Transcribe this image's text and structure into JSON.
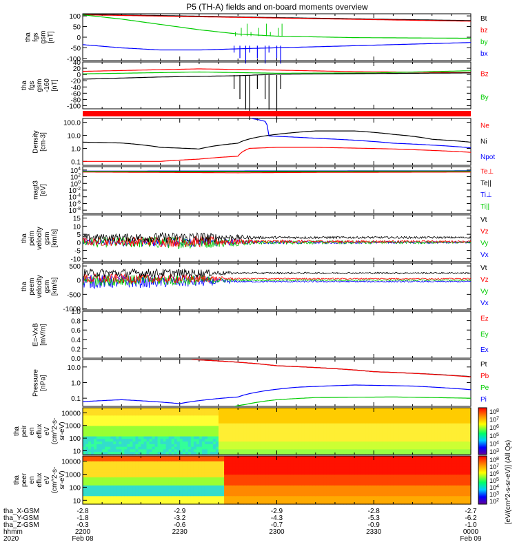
{
  "title": "P5 (TH-A) fields and on-board moments overview",
  "colors": {
    "black": "#000000",
    "red": "#ff0000",
    "green": "#00cc00",
    "blue": "#0000ff"
  },
  "chart_data": {
    "type": "line",
    "time_axis": {
      "ticks": [
        "2200",
        "2230",
        "2300",
        "2330",
        "0000"
      ],
      "dates": [
        "Feb 08",
        "",
        "",
        "",
        "Feb 09"
      ],
      "year": "2020",
      "rows": [
        {
          "label": "tha_X-GSM",
          "values": [
            "-2.8",
            "-2.9",
            "-2.9",
            "-2.8",
            "-2.7"
          ]
        },
        {
          "label": "tha_Y-GSM",
          "values": [
            "-1.8",
            "-3.2",
            "-4.3",
            "-5.3",
            "-6.2"
          ]
        },
        {
          "label": "tha_Z-GSM",
          "values": [
            "-0.3",
            "-0.6",
            "-0.7",
            "-0.9",
            "-1.0"
          ]
        },
        {
          "label": "hhmm",
          "values": [
            "2200",
            "2230",
            "2300",
            "2330",
            "0000"
          ]
        }
      ]
    },
    "panels": [
      {
        "id": "fgs",
        "ylabel": [
          "tha",
          "fgs",
          "gsm",
          "[nT]"
        ],
        "yticks": [
          "100",
          "50",
          "0",
          "-50",
          "-100"
        ],
        "ylim": [
          -110,
          110
        ],
        "legend": [
          "Bt",
          "bz",
          "by",
          "bx"
        ],
        "series": [
          {
            "name": "Bt",
            "color": "#000000",
            "points": [
              [
                0,
                108
              ],
              [
                0.5,
                92
              ],
              [
                1,
                78
              ]
            ]
          },
          {
            "name": "bz",
            "color": "#ff0000",
            "points": [
              [
                0,
                105
              ],
              [
                0.5,
                90
              ],
              [
                1,
                75
              ]
            ]
          },
          {
            "name": "by",
            "color": "#00cc00",
            "points": [
              [
                0,
                105
              ],
              [
                0.1,
                85
              ],
              [
                0.2,
                60
              ],
              [
                0.3,
                35
              ],
              [
                0.4,
                15
              ],
              [
                0.5,
                5
              ],
              [
                0.7,
                -2
              ],
              [
                1,
                -5
              ]
            ]
          },
          {
            "name": "bx",
            "color": "#0000ff",
            "points": [
              [
                0,
                -35
              ],
              [
                0.1,
                -50
              ],
              [
                0.2,
                -60
              ],
              [
                0.3,
                -60
              ],
              [
                0.45,
                -52
              ],
              [
                0.6,
                -45
              ],
              [
                0.8,
                -35
              ],
              [
                1,
                -25
              ]
            ]
          }
        ]
      },
      {
        "id": "fgs_dsl",
        "ylabel": [
          "tha",
          "fgs",
          "gsm",
          "-160",
          "[nT]"
        ],
        "yticks": [
          "40",
          "20",
          "0",
          "-20",
          "-40",
          "-60",
          "-80",
          "-100"
        ],
        "ylim": [
          -110,
          40
        ],
        "legend": [
          "Bz",
          "By"
        ],
        "series": [
          {
            "name": "Bz",
            "color": "#ff0000",
            "points": [
              [
                0,
                10
              ],
              [
                0.3,
                18
              ],
              [
                0.5,
                14
              ],
              [
                0.7,
                9
              ],
              [
                1,
                6
              ]
            ]
          },
          {
            "name": "By",
            "color": "#00cc00",
            "points": [
              [
                0,
                2
              ],
              [
                0.3,
                8
              ],
              [
                0.5,
                4
              ],
              [
                0.75,
                5
              ],
              [
                1,
                12
              ]
            ]
          },
          {
            "name": "Bx",
            "color": "#000000",
            "points": [
              [
                0,
                -15
              ],
              [
                0.2,
                -8
              ],
              [
                0.4,
                -4
              ],
              [
                0.5,
                1
              ],
              [
                0.75,
                3
              ],
              [
                1,
                5
              ]
            ]
          }
        ]
      },
      {
        "id": "density",
        "ylabel": [
          "Density",
          "[cm-3]"
        ],
        "yticks": [
          "100.0",
          "10.0",
          "1.0",
          "0.1"
        ],
        "ylim": [
          0.05,
          200
        ],
        "log": true,
        "legend": [
          "Ne",
          "Ni",
          "Npot"
        ],
        "series": [
          {
            "name": "Ni",
            "color": "#000000",
            "points": [
              [
                0,
                3
              ],
              [
                0.1,
                2.6
              ],
              [
                0.2,
                1.2
              ],
              [
                0.3,
                0.9
              ],
              [
                0.4,
                2.5
              ],
              [
                0.5,
                12
              ],
              [
                0.6,
                22
              ],
              [
                0.7,
                22
              ],
              [
                0.8,
                12
              ],
              [
                0.9,
                5
              ],
              [
                1,
                3
              ]
            ]
          },
          {
            "name": "Ne",
            "color": "#ff0000",
            "points": [
              [
                0,
                0.1
              ],
              [
                0.2,
                0.1
              ],
              [
                0.3,
                0.15
              ],
              [
                0.4,
                0.25
              ],
              [
                0.43,
                1
              ],
              [
                0.5,
                1.2
              ],
              [
                0.6,
                1.2
              ],
              [
                0.8,
                0.9
              ],
              [
                1,
                0.5
              ]
            ]
          },
          {
            "name": "Npot",
            "color": "#0000ff",
            "points": [
              [
                0.435,
                200
              ],
              [
                0.47,
                120
              ],
              [
                0.48,
                9
              ],
              [
                0.6,
                6
              ],
              [
                0.8,
                2.5
              ],
              [
                1,
                1.1
              ]
            ]
          }
        ]
      },
      {
        "id": "magt3",
        "ylabel": [
          "magt3",
          "[eV]"
        ],
        "yticks": [
          "10^4",
          "10^2",
          "10^0",
          "10^-2",
          "10^-4",
          "10^-6",
          "10^-8"
        ],
        "ylim": [
          1e-09,
          100000.0
        ],
        "log": true,
        "legend": [
          "Te⊥",
          "Te||",
          "Ti⊥",
          "Ti||"
        ],
        "series": [
          {
            "name": "Te||",
            "color": "#000000",
            "points": [
              [
                0,
                3000
              ],
              [
                1,
                3000
              ]
            ]
          },
          {
            "name": "Te⊥",
            "color": "#ff0000",
            "points": [
              [
                0,
                2500
              ],
              [
                0.4,
                1500
              ],
              [
                0.6,
                2000
              ],
              [
                1,
                2500
              ]
            ]
          },
          {
            "name": "Ti⊥",
            "color": "#0000ff",
            "points": [
              [
                0,
                5000
              ],
              [
                1,
                6000
              ]
            ]
          },
          {
            "name": "Ti||",
            "color": "#00cc00",
            "points": [
              [
                0,
                4000
              ],
              [
                1,
                5000
              ]
            ]
          }
        ]
      },
      {
        "id": "peim",
        "ylabel": [
          "tha",
          "peim",
          "velocity",
          "gsm",
          "[km/s]"
        ],
        "yticks": [
          "15",
          "10",
          "5",
          "0",
          "-5",
          "-10"
        ],
        "ylim": [
          -12,
          17
        ],
        "legend": [
          "Vt",
          "Vz",
          "Vy",
          "Vx"
        ],
        "noise": [
          {
            "name": "Vx",
            "color": "#0000ff",
            "amp": [
              [
                0,
                2
              ],
              [
                0.3,
                3
              ],
              [
                0.45,
                1
              ],
              [
                1,
                0.6
              ]
            ],
            "base": 0
          },
          {
            "name": "Vy",
            "color": "#00cc00",
            "amp": [
              [
                0,
                3
              ],
              [
                0.3,
                4
              ],
              [
                0.45,
                1.2
              ],
              [
                1,
                0.7
              ]
            ],
            "base": 0
          },
          {
            "name": "Vz",
            "color": "#ff0000",
            "amp": [
              [
                0,
                2.5
              ],
              [
                0.3,
                3.5
              ],
              [
                0.45,
                1
              ],
              [
                1,
                0.6
              ]
            ],
            "base": 0.5
          },
          {
            "name": "Vt",
            "color": "#000000",
            "amp": [
              [
                0,
                2
              ],
              [
                0.3,
                3.5
              ],
              [
                0.45,
                0.8
              ],
              [
                1,
                0.6
              ]
            ],
            "base": 3
          }
        ]
      },
      {
        "id": "peem",
        "ylabel": [
          "tha",
          "peem",
          "velocity",
          "gsm",
          "[km/s]"
        ],
        "yticks": [
          "500",
          "0",
          "-500",
          "-1000"
        ],
        "ylim": [
          -1050,
          600
        ],
        "legend": [
          "Vt",
          "Vz",
          "Vy",
          "Vx"
        ],
        "noise": [
          {
            "name": "Vx",
            "color": "#0000ff",
            "amp": [
              [
                0,
                250
              ],
              [
                0.3,
                200
              ],
              [
                0.4,
                30
              ],
              [
                1,
                25
              ]
            ],
            "base": -50
          },
          {
            "name": "Vy",
            "color": "#00cc00",
            "amp": [
              [
                0,
                200
              ],
              [
                0.3,
                180
              ],
              [
                0.4,
                25
              ],
              [
                1,
                20
              ]
            ],
            "base": 0
          },
          {
            "name": "Vz",
            "color": "#ff0000",
            "amp": [
              [
                0,
                180
              ],
              [
                0.3,
                150
              ],
              [
                0.4,
                25
              ],
              [
                1,
                20
              ]
            ],
            "base": 50
          },
          {
            "name": "Vt",
            "color": "#000000",
            "amp": [
              [
                0,
                150
              ],
              [
                0.3,
                150
              ],
              [
                0.4,
                30
              ],
              [
                1,
                30
              ]
            ],
            "base": 250
          }
        ]
      },
      {
        "id": "efield",
        "ylabel": [
          "E=-VxB",
          "[mV/m]"
        ],
        "yticks": [
          "1.0",
          "0.8",
          "0.6",
          "0.4",
          "0.2",
          "0.0"
        ],
        "ylim": [
          0,
          1
        ],
        "legend": [
          "Ez",
          "Ey",
          "Ex"
        ],
        "series": []
      },
      {
        "id": "pressure",
        "ylabel": [
          "Pressure",
          "[nPa]"
        ],
        "yticks": [
          "10.0",
          "1.0",
          "0.1"
        ],
        "ylim": [
          0.03,
          30
        ],
        "log": true,
        "legend": [
          "Pt",
          "Pb",
          "Pe",
          "Pi"
        ],
        "series": [
          {
            "name": "Pt",
            "color": "#000000",
            "points": [
              [
                0.28,
                30
              ],
              [
                0.5,
                12
              ],
              [
                0.75,
                5
              ],
              [
                1,
                2.4
              ]
            ]
          },
          {
            "name": "Pb",
            "color": "#ff0000",
            "points": [
              [
                0.28,
                30
              ],
              [
                0.5,
                12
              ],
              [
                0.75,
                5
              ],
              [
                1,
                2.3
              ]
            ]
          },
          {
            "name": "Pi",
            "color": "#0000ff",
            "points": [
              [
                0,
                0.06
              ],
              [
                0.1,
                0.08
              ],
              [
                0.25,
                0.045
              ],
              [
                0.4,
                0.12
              ],
              [
                0.55,
                0.5
              ],
              [
                0.7,
                0.7
              ],
              [
                0.85,
                0.6
              ],
              [
                1,
                0.35
              ]
            ]
          },
          {
            "name": "Pe",
            "color": "#00cc00",
            "points": [
              [
                0.39,
                0.03
              ],
              [
                0.42,
                0.04
              ],
              [
                0.5,
                0.08
              ],
              [
                0.6,
                0.11
              ],
              [
                0.8,
                0.12
              ],
              [
                1,
                0.1
              ]
            ]
          }
        ]
      }
    ],
    "spectrograms": [
      {
        "id": "peir",
        "ylabel": [
          "tha",
          "peir",
          "en",
          "eflux",
          "eV",
          "(cm^2-s-",
          "sr-eV)"
        ],
        "yticks": [
          "10000",
          "1000",
          "100",
          "10"
        ],
        "colorbar_ticks": [
          "10^8",
          "10^7",
          "10^6",
          "10^5",
          "10^4",
          "10^3"
        ]
      },
      {
        "id": "peer",
        "ylabel": [
          "tha",
          "peer",
          "en",
          "eflux",
          "eV",
          "(cm^2-s-",
          "sr-eV)"
        ],
        "yticks": [
          "10000",
          "1000",
          "100",
          "10"
        ],
        "colorbar_ticks": [
          "10^8",
          "10^7",
          "10^6",
          "10^5",
          "10^4",
          "10^3",
          "10^2"
        ]
      }
    ],
    "colorbar_label": "[eV/(cm^2-s-sr-eV)] (All Qs)"
  }
}
